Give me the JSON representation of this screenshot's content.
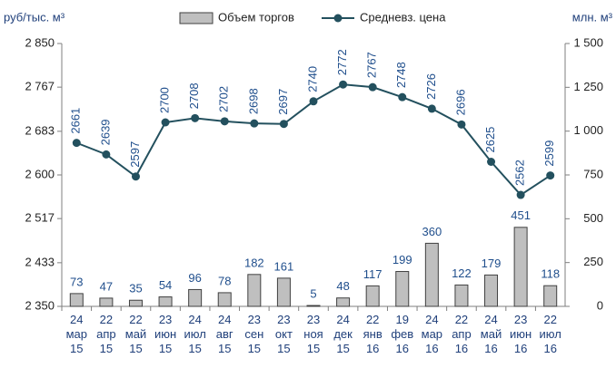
{
  "chart_data": {
    "type": "bar-line",
    "y_label": "руб/тыс. м³",
    "y2_label": "млн. м³",
    "categories": [
      "24 мар 15",
      "22 апр 15",
      "22 май 15",
      "23 июн 15",
      "24 июл 15",
      "24 авг 15",
      "23 сен 15",
      "23 окт 15",
      "23 ноя 15",
      "24 дек 15",
      "22 янв 16",
      "19 фев 16",
      "24 мар 16",
      "22 апр 16",
      "24 май 16",
      "23 июн 16",
      "22 июл 16"
    ],
    "series": [
      {
        "name": "Объем торгов",
        "type": "bar",
        "axis": "y2",
        "color": "#bfbfbf",
        "values": [
          73,
          47,
          35,
          54,
          96,
          78,
          182,
          161,
          5,
          48,
          117,
          199,
          360,
          122,
          179,
          451,
          118
        ]
      },
      {
        "name": "Средневз. цена",
        "type": "line",
        "axis": "y",
        "color": "#23505e",
        "values": [
          2661,
          2639,
          2597,
          2700,
          2708,
          2702,
          2698,
          2697,
          2740,
          2772,
          2767,
          2748,
          2726,
          2696,
          2625,
          2562,
          2599
        ]
      }
    ],
    "ylim": [
      2350,
      2850
    ],
    "yticks": [
      {
        "value": 2350,
        "label": "2 350"
      },
      {
        "value": 2433,
        "label": "2 433"
      },
      {
        "value": 2517,
        "label": "2 517"
      },
      {
        "value": 2600,
        "label": "2 600"
      },
      {
        "value": 2683,
        "label": "2 683"
      },
      {
        "value": 2767,
        "label": "2 767"
      },
      {
        "value": 2850,
        "label": "2 850"
      }
    ],
    "y2lim": [
      0,
      1500
    ],
    "y2ticks": [
      0,
      250,
      500,
      750,
      {
        "value": 1000,
        "label": "1 000"
      },
      {
        "value": 1250,
        "label": "1 250"
      },
      {
        "value": 1500,
        "label": "1 500"
      }
    ],
    "label_color": "#1f4e8c",
    "legend": "top"
  }
}
